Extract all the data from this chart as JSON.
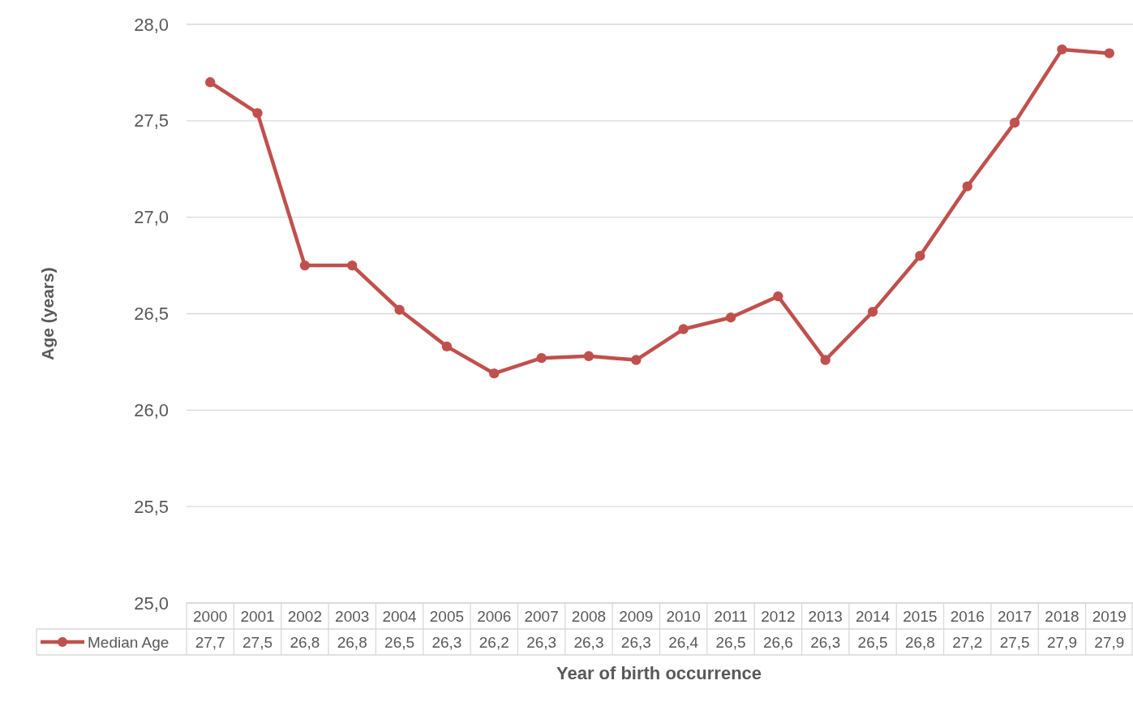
{
  "chart_data": {
    "type": "line",
    "ylabel": "Age (years)",
    "xlabel": "Year of birth occurrence",
    "categories": [
      "2000",
      "2001",
      "2002",
      "2003",
      "2004",
      "2005",
      "2006",
      "2007",
      "2008",
      "2009",
      "2010",
      "2011",
      "2012",
      "2013",
      "2014",
      "2015",
      "2016",
      "2017",
      "2018",
      "2019"
    ],
    "series": [
      {
        "name": "Median Age",
        "color": "#c0504d",
        "values": [
          27.7,
          27.54,
          26.75,
          26.75,
          26.52,
          26.33,
          26.19,
          26.27,
          26.28,
          26.26,
          26.42,
          26.48,
          26.59,
          26.26,
          26.51,
          26.8,
          27.16,
          27.49,
          27.87,
          27.85
        ],
        "value_labels": [
          "27,7",
          "27,5",
          "26,8",
          "26,8",
          "26,5",
          "26,3",
          "26,2",
          "26,3",
          "26,3",
          "26,3",
          "26,4",
          "26,5",
          "26,6",
          "26,3",
          "26,5",
          "26,8",
          "27,2",
          "27,5",
          "27,9",
          "27,9"
        ]
      }
    ],
    "ylim": [
      25,
      28
    ],
    "yticks": [
      {
        "value": 25,
        "label": "25,0"
      },
      {
        "value": 25.5,
        "label": "25,5"
      },
      {
        "value": 26,
        "label": "26,0"
      },
      {
        "value": 26.5,
        "label": "26,5"
      },
      {
        "value": 27,
        "label": "27,0"
      },
      {
        "value": 27.5,
        "label": "27,5"
      },
      {
        "value": 28,
        "label": "28,0"
      }
    ],
    "grid": "y",
    "marker": "circle",
    "line_style": "solid",
    "legend": "bottom left"
  }
}
